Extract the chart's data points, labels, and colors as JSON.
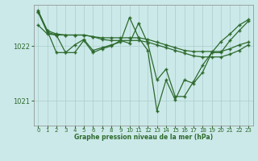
{
  "title": "Graphe pression niveau de la mer (hPa)",
  "bg_color": "#cce9e9",
  "grid_color": "#aacccc",
  "line_color": "#2d6a2d",
  "xlim": [
    -0.5,
    23.5
  ],
  "ylim": [
    1020.55,
    1022.75
  ],
  "yticks": [
    1021,
    1022
  ],
  "xticks": [
    0,
    1,
    2,
    3,
    4,
    5,
    6,
    7,
    8,
    9,
    10,
    11,
    12,
    13,
    14,
    15,
    16,
    17,
    18,
    19,
    20,
    21,
    22,
    23
  ],
  "series": [
    [
      1022.62,
      1022.25,
      1022.2,
      1021.88,
      1021.88,
      1022.1,
      1021.88,
      1021.95,
      1022.0,
      1022.1,
      1022.05,
      1022.42,
      1022.05,
      1021.38,
      1021.58,
      1021.08,
      1021.08,
      1021.35,
      1021.65,
      1021.88,
      1021.88,
      1022.1,
      1022.28,
      1022.45
    ],
    [
      1022.38,
      1022.22,
      1022.2,
      1022.2,
      1022.2,
      1022.2,
      1022.17,
      1022.12,
      1022.1,
      1022.1,
      1022.1,
      1022.1,
      1022.07,
      1022.02,
      1021.97,
      1021.92,
      1021.87,
      1021.82,
      1021.8,
      1021.8,
      1021.8,
      1021.85,
      1021.92,
      1022.02
    ],
    [
      1022.62,
      1022.28,
      1022.22,
      1022.2,
      1022.2,
      1022.2,
      1022.17,
      1022.15,
      1022.15,
      1022.15,
      1022.15,
      1022.15,
      1022.12,
      1022.07,
      1022.02,
      1021.97,
      1021.92,
      1021.9,
      1021.9,
      1021.9,
      1021.9,
      1021.95,
      1022.02,
      1022.07
    ],
    [
      1022.65,
      1022.28,
      1021.88,
      1021.88,
      1022.02,
      1022.12,
      1021.92,
      1021.97,
      1022.02,
      1022.07,
      1022.52,
      1022.15,
      1021.92,
      1020.82,
      1021.38,
      1021.02,
      1021.38,
      1021.32,
      1021.52,
      1021.88,
      1022.08,
      1022.22,
      1022.38,
      1022.48
    ]
  ]
}
